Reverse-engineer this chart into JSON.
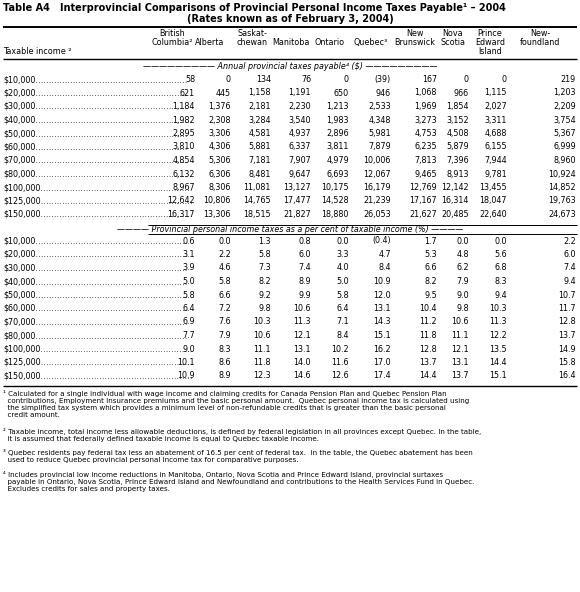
{
  "title_line1": "Table A4   Interprovincial Comparisons of Provincial Personal Income Taxes Payable¹ – 2004",
  "title_line2": "(Rates known as of February 3, 2004)",
  "col_header_r1": [
    "",
    "British",
    "",
    "Saskat-",
    "",
    "",
    "",
    "New",
    "Nova",
    "Prince",
    "New-"
  ],
  "col_header_r2": [
    "",
    "Columbia²",
    "Alberta",
    "chewan",
    "Manitoba",
    "Ontario",
    "Quebec³",
    "Brunswick",
    "Scotia",
    "Edward",
    "foundland"
  ],
  "col_header_r3": [
    "Taxable income ²",
    "",
    "",
    "",
    "",
    "",
    "",
    "",
    "",
    "Island",
    ""
  ],
  "section1_label": "Annual provincial taxes payable⁴ ($)",
  "section2_label": "Provincial personal income taxes as a per cent of taxable income (%)",
  "income_rows": [
    "$10,000",
    "$20,000",
    "$30,000",
    "$40,000",
    "$50,000",
    "$60,000",
    "$70,000",
    "$80,000",
    "$100,000",
    "$125,000",
    "$150,000"
  ],
  "dollar_data": [
    [
      "58",
      "0",
      "134",
      "76",
      "0",
      "(39)",
      "167",
      "0",
      "0",
      "219"
    ],
    [
      "621",
      "445",
      "1,158",
      "1,191",
      "650",
      "946",
      "1,068",
      "966",
      "1,115",
      "1,203"
    ],
    [
      "1,184",
      "1,376",
      "2,181",
      "2,230",
      "1,213",
      "2,533",
      "1,969",
      "1,854",
      "2,027",
      "2,209"
    ],
    [
      "1,982",
      "2,308",
      "3,284",
      "3,540",
      "1,983",
      "4,348",
      "3,273",
      "3,152",
      "3,311",
      "3,754"
    ],
    [
      "2,895",
      "3,306",
      "4,581",
      "4,937",
      "2,896",
      "5,981",
      "4,753",
      "4,508",
      "4,688",
      "5,367"
    ],
    [
      "3,810",
      "4,306",
      "5,881",
      "6,337",
      "3,811",
      "7,879",
      "6,235",
      "5,879",
      "6,155",
      "6,999"
    ],
    [
      "4,854",
      "5,306",
      "7,181",
      "7,907",
      "4,979",
      "10,006",
      "7,813",
      "7,396",
      "7,944",
      "8,960"
    ],
    [
      "6,132",
      "6,306",
      "8,481",
      "9,647",
      "6,693",
      "12,067",
      "9,465",
      "8,913",
      "9,781",
      "10,924"
    ],
    [
      "8,967",
      "8,306",
      "11,081",
      "13,127",
      "10,175",
      "16,179",
      "12,769",
      "12,142",
      "13,455",
      "14,852"
    ],
    [
      "12,642",
      "10,806",
      "14,765",
      "17,477",
      "14,528",
      "21,239",
      "17,167",
      "16,314",
      "18,047",
      "19,763"
    ],
    [
      "16,317",
      "13,306",
      "18,515",
      "21,827",
      "18,880",
      "26,053",
      "21,627",
      "20,485",
      "22,640",
      "24,673"
    ]
  ],
  "pct_data": [
    [
      "0.6",
      "0.0",
      "1.3",
      "0.8",
      "0.0",
      "(0.4)",
      "1.7",
      "0.0",
      "0.0",
      "2.2"
    ],
    [
      "3.1",
      "2.2",
      "5.8",
      "6.0",
      "3.3",
      "4.7",
      "5.3",
      "4.8",
      "5.6",
      "6.0"
    ],
    [
      "3.9",
      "4.6",
      "7.3",
      "7.4",
      "4.0",
      "8.4",
      "6.6",
      "6.2",
      "6.8",
      "7.4"
    ],
    [
      "5.0",
      "5.8",
      "8.2",
      "8.9",
      "5.0",
      "10.9",
      "8.2",
      "7.9",
      "8.3",
      "9.4"
    ],
    [
      "5.8",
      "6.6",
      "9.2",
      "9.9",
      "5.8",
      "12.0",
      "9.5",
      "9.0",
      "9.4",
      "10.7"
    ],
    [
      "6.4",
      "7.2",
      "9.8",
      "10.6",
      "6.4",
      "13.1",
      "10.4",
      "9.8",
      "10.3",
      "11.7"
    ],
    [
      "6.9",
      "7.6",
      "10.3",
      "11.3",
      "7.1",
      "14.3",
      "11.2",
      "10.6",
      "11.3",
      "12.8"
    ],
    [
      "7.7",
      "7.9",
      "10.6",
      "12.1",
      "8.4",
      "15.1",
      "11.8",
      "11.1",
      "12.2",
      "13.7"
    ],
    [
      "9.0",
      "8.3",
      "11.1",
      "13.1",
      "10.2",
      "16.2",
      "12.8",
      "12.1",
      "13.5",
      "14.9"
    ],
    [
      "10.1",
      "8.6",
      "11.8",
      "14.0",
      "11.6",
      "17.0",
      "13.7",
      "13.1",
      "14.4",
      "15.8"
    ],
    [
      "10.9",
      "8.9",
      "12.3",
      "14.6",
      "12.6",
      "17.4",
      "14.4",
      "13.7",
      "15.1",
      "16.4"
    ]
  ],
  "footnote1": "¹ Calculated for a single individual with wage income and claiming credits for Canada Pension Plan and Quebec Pension Plan\n  contributions, Employment Insurance premiums and the basic personal amount.  Quebec personal income tax is calculated using\n  the simplified tax system which provides a minimum level of non-refundable credits that is greater than the basic personal\n  credit amount.",
  "footnote2": "² Taxable income, total income less allowable deductions, is defined by federal legislation in all provinces except Quebec. In the table,\n  it is assumed that federally defined taxable income is equal to Quebec taxable income.",
  "footnote3": "³ Quebec residents pay federal tax less an abatement of 16.5 per cent of federal tax.  In the table, the Quebec abatement has been\n  used to reduce Quebec provincial personal income tax for comparative purposes.",
  "footnote4": "⁴ Includes provincial low income reductions in Manitoba, Ontario, Nova Scotia and Prince Edward Island, provincial surtaxes\n  payable in Ontario, Nova Scotia, Prince Edward Island and Newfoundland and contributions to the Health Services Fund in Quebec.\n  Excludes credits for sales and property taxes."
}
